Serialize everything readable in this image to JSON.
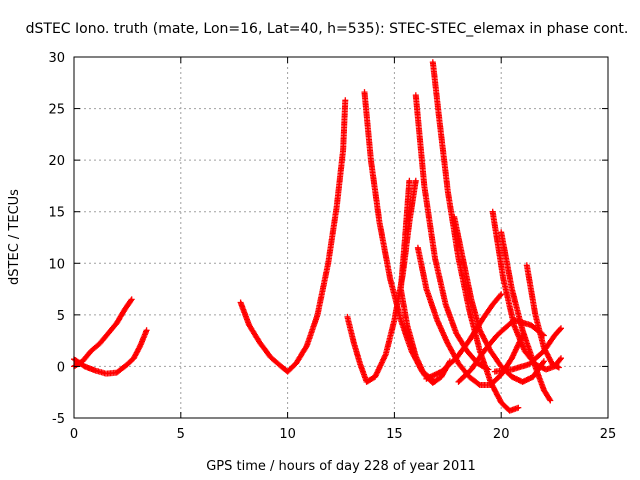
{
  "chart_data": {
    "type": "scatter",
    "title": "dSTEC Iono. truth (mate, Lon=16, Lat=40, h=535): STEC-STEC_elemax in phase cont.",
    "xlabel": "GPS time / hours of day 228 of year 2011",
    "ylabel": "dSTEC  / TECUs",
    "xlim": [
      0,
      25
    ],
    "ylim": [
      -5,
      30
    ],
    "xticks": [
      0,
      5,
      10,
      15,
      20,
      25
    ],
    "yticks": [
      -5,
      0,
      5,
      10,
      15,
      20,
      25,
      30
    ],
    "xtick_labels": [
      "0",
      "5",
      "10",
      "15",
      "20",
      "25"
    ],
    "ytick_labels": [
      "-5",
      "0",
      "5",
      "10",
      "15",
      "20",
      "25",
      "30"
    ],
    "grid": true,
    "legend": "none",
    "marker": "plus",
    "color": "#ff0000",
    "series": [
      {
        "x": [
          0.0,
          0.4,
          0.8,
          1.2,
          1.6,
          2.0,
          2.4,
          2.7
        ],
        "y": [
          0.0,
          0.5,
          1.5,
          2.2,
          3.2,
          4.2,
          5.6,
          6.5
        ]
      },
      {
        "x": [
          0.0,
          0.5,
          1.0,
          1.5,
          2.0,
          2.5,
          2.8,
          3.1,
          3.4
        ],
        "y": [
          0.7,
          0.0,
          -0.4,
          -0.7,
          -0.6,
          0.2,
          0.8,
          2.0,
          3.5
        ]
      },
      {
        "x": [
          7.8,
          8.2,
          8.7,
          9.2,
          9.7,
          10.0,
          10.4,
          10.9,
          11.4,
          11.9,
          12.3,
          12.6,
          12.7
        ],
        "y": [
          6.2,
          4.0,
          2.3,
          0.9,
          0.0,
          -0.5,
          0.3,
          2.0,
          5.0,
          10.0,
          15.5,
          21.0,
          25.8
        ]
      },
      {
        "x": [
          12.8,
          13.1,
          13.4,
          13.7,
          14.1,
          14.6,
          15.0,
          15.4,
          15.7,
          16.0
        ],
        "y": [
          4.8,
          2.3,
          0.2,
          -1.5,
          -1.0,
          1.2,
          4.5,
          9.0,
          14.0,
          18.0
        ]
      },
      {
        "x": [
          13.6,
          13.9,
          14.3,
          14.8,
          15.3,
          15.8,
          16.3,
          16.8
        ],
        "y": [
          26.6,
          20.0,
          14.0,
          8.5,
          4.5,
          1.5,
          -0.5,
          -1.3
        ]
      },
      {
        "x": [
          15.7,
          15.5,
          15.3,
          15.6,
          16.0,
          16.4,
          16.8,
          17.2,
          17.6
        ],
        "y": [
          18.0,
          12.5,
          7.5,
          4.0,
          1.0,
          -0.8,
          -1.6,
          -1.0,
          0.5
        ]
      },
      {
        "x": [
          16.0,
          16.4,
          16.9,
          17.4,
          17.9,
          18.4,
          18.9,
          19.4
        ],
        "y": [
          26.3,
          17.5,
          10.5,
          6.0,
          3.2,
          1.5,
          0.3,
          -0.3
        ]
      },
      {
        "x": [
          16.8,
          17.1,
          17.5,
          18.0,
          18.5,
          19.0,
          19.5,
          20.0,
          20.4,
          20.8
        ],
        "y": [
          29.5,
          24.0,
          17.0,
          10.5,
          5.5,
          1.5,
          -1.5,
          -3.5,
          -4.3,
          -4.0
        ]
      },
      {
        "x": [
          16.1,
          16.5,
          17.0,
          17.5,
          18.0,
          18.5,
          19.0,
          19.5,
          20.0,
          20.5,
          21.0
        ],
        "y": [
          11.5,
          7.5,
          4.5,
          2.2,
          0.3,
          -1.0,
          -1.8,
          -1.8,
          -0.8,
          0.8,
          3.0
        ]
      },
      {
        "x": [
          17.8,
          18.2,
          18.6,
          19.0,
          19.5,
          20.0,
          20.5,
          21.0,
          21.5,
          22.0
        ],
        "y": [
          14.5,
          10.5,
          6.5,
          3.5,
          1.5,
          0.0,
          -1.0,
          -1.5,
          -1.0,
          0.5
        ]
      },
      {
        "x": [
          16.5,
          17.2,
          17.9,
          18.5,
          19.1,
          19.6,
          20.0
        ],
        "y": [
          -1.2,
          -0.5,
          0.8,
          2.5,
          4.5,
          6.0,
          7.0
        ]
      },
      {
        "x": [
          19.6,
          20.1,
          20.6,
          21.1,
          21.6,
          22.1,
          22.5,
          22.8
        ],
        "y": [
          15.0,
          8.5,
          4.0,
          1.5,
          0.2,
          -0.3,
          0.0,
          0.8
        ]
      },
      {
        "x": [
          20.0,
          20.5,
          21.0,
          21.5,
          22.0,
          22.3
        ],
        "y": [
          13.0,
          7.5,
          3.5,
          0.5,
          -2.3,
          -3.3
        ]
      },
      {
        "x": [
          19.7,
          20.5,
          21.3,
          22.0,
          22.5,
          22.8
        ],
        "y": [
          -0.5,
          -0.3,
          0.2,
          1.5,
          3.0,
          3.7
        ]
      },
      {
        "x": [
          21.2,
          21.6,
          22.0,
          22.4,
          22.7
        ],
        "y": [
          9.8,
          5.0,
          1.8,
          0.2,
          -0.1
        ]
      },
      {
        "x": [
          18.0,
          18.6,
          19.2,
          19.8,
          20.6,
          21.4,
          22.0
        ],
        "y": [
          -1.5,
          -0.3,
          1.5,
          3.0,
          4.5,
          4.0,
          3.0
        ]
      }
    ]
  }
}
